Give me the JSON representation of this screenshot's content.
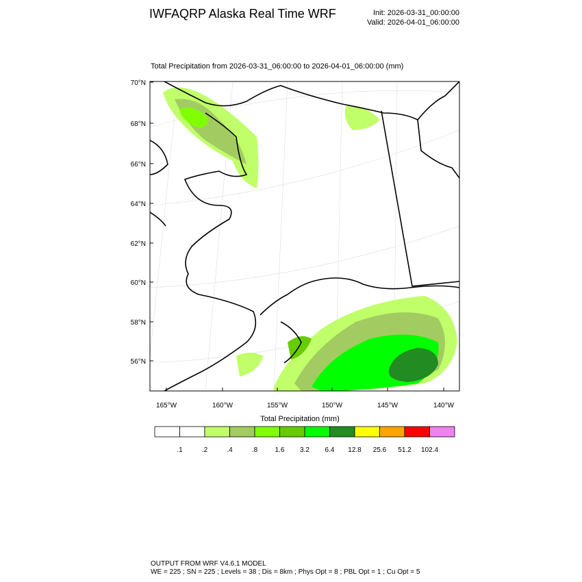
{
  "header": {
    "title": "IWFAQRP Alaska Real Time WRF",
    "init": "Init: 2026-03-31_00:00:00",
    "valid": "Valid: 2026-04-01_06:00:00"
  },
  "map": {
    "subtitle": "Total Precipitation from 2026-03-31_06:00:00 to 2026-04-01_06:00:00   (mm)",
    "lat_labels": [
      "70°N",
      "68°N",
      "66°N",
      "64°N",
      "62°N",
      "60°N",
      "58°N",
      "56°N"
    ],
    "lon_labels": [
      "165°W",
      "160°W",
      "155°W",
      "150°W",
      "145°W",
      "140°W"
    ]
  },
  "colorbar": {
    "title": "Total Precipitation  (mm)",
    "colors": [
      "#ffffff",
      "#ffffff",
      "#c0ff6a",
      "#a2cc62",
      "#80ff00",
      "#66cc00",
      "#00ff00",
      "#228b22",
      "#ffff00",
      "#ffa500",
      "#ff0000",
      "#ee82ee"
    ],
    "labels": [
      ".1",
      ".2",
      ".4",
      ".8",
      "1.6",
      "3.2",
      "6.4",
      "12.8",
      "25.6",
      "51.2",
      "102.4"
    ]
  },
  "footer": {
    "line1": "OUTPUT FROM WRF V4.6.1 MODEL",
    "line2": "WE = 225 ; SN = 225 ; Levels = 38 ; Dis = 8km ; Phys Opt = 8 ; PBL Opt = 1 ; Cu Opt = 5"
  }
}
